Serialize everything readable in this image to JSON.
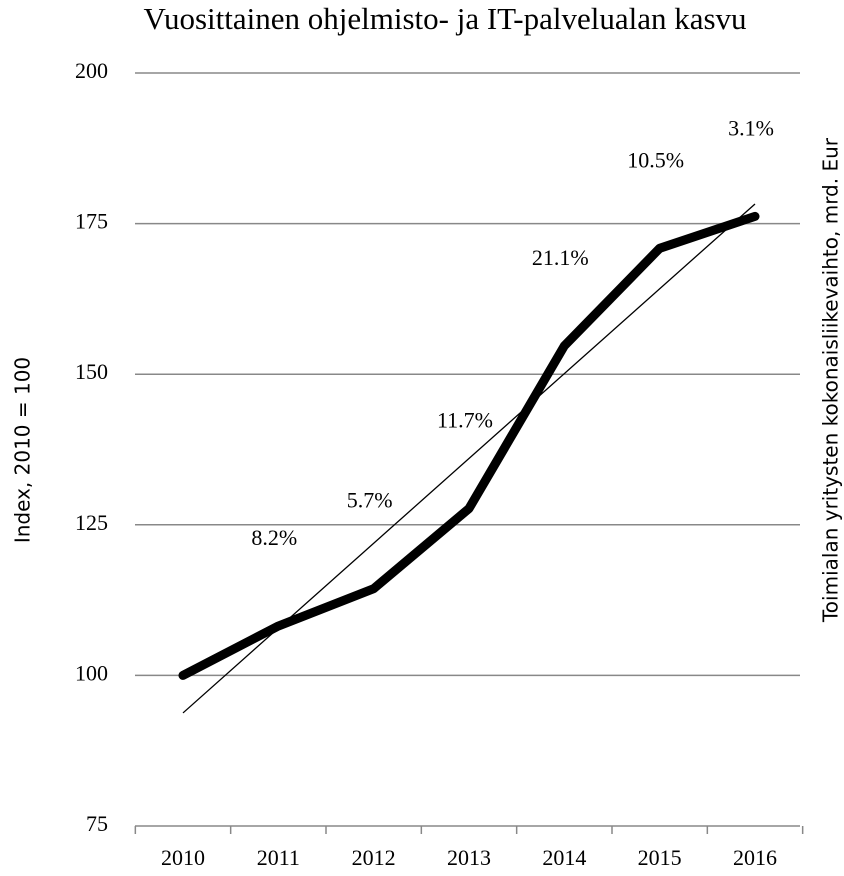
{
  "chart_data": {
    "type": "line",
    "title": "Vuosittainen ohjelmisto- ja IT-palvelualan kasvu",
    "y_label": "Index, 2010 = 100",
    "y2_label": "Toimialan yritysten kokonaisliikevaihto, mrd. Eur",
    "categories": [
      "2010",
      "2011",
      "2012",
      "2013",
      "2014",
      "2015",
      "2016"
    ],
    "series": [
      {
        "name": "Index",
        "color": "#000000",
        "values": [
          100,
          108.2,
          114.4,
          127.7,
          154.7,
          170.9,
          176.2
        ]
      }
    ],
    "annotations": [
      "8.2%",
      "5.7%",
      "11.7%",
      "21.1%",
      "10.5%",
      "3.1%"
    ],
    "ylim": [
      75,
      200
    ],
    "yticks": [
      75,
      100,
      125,
      150,
      175,
      200
    ],
    "grid": true,
    "trendline": "linear"
  }
}
